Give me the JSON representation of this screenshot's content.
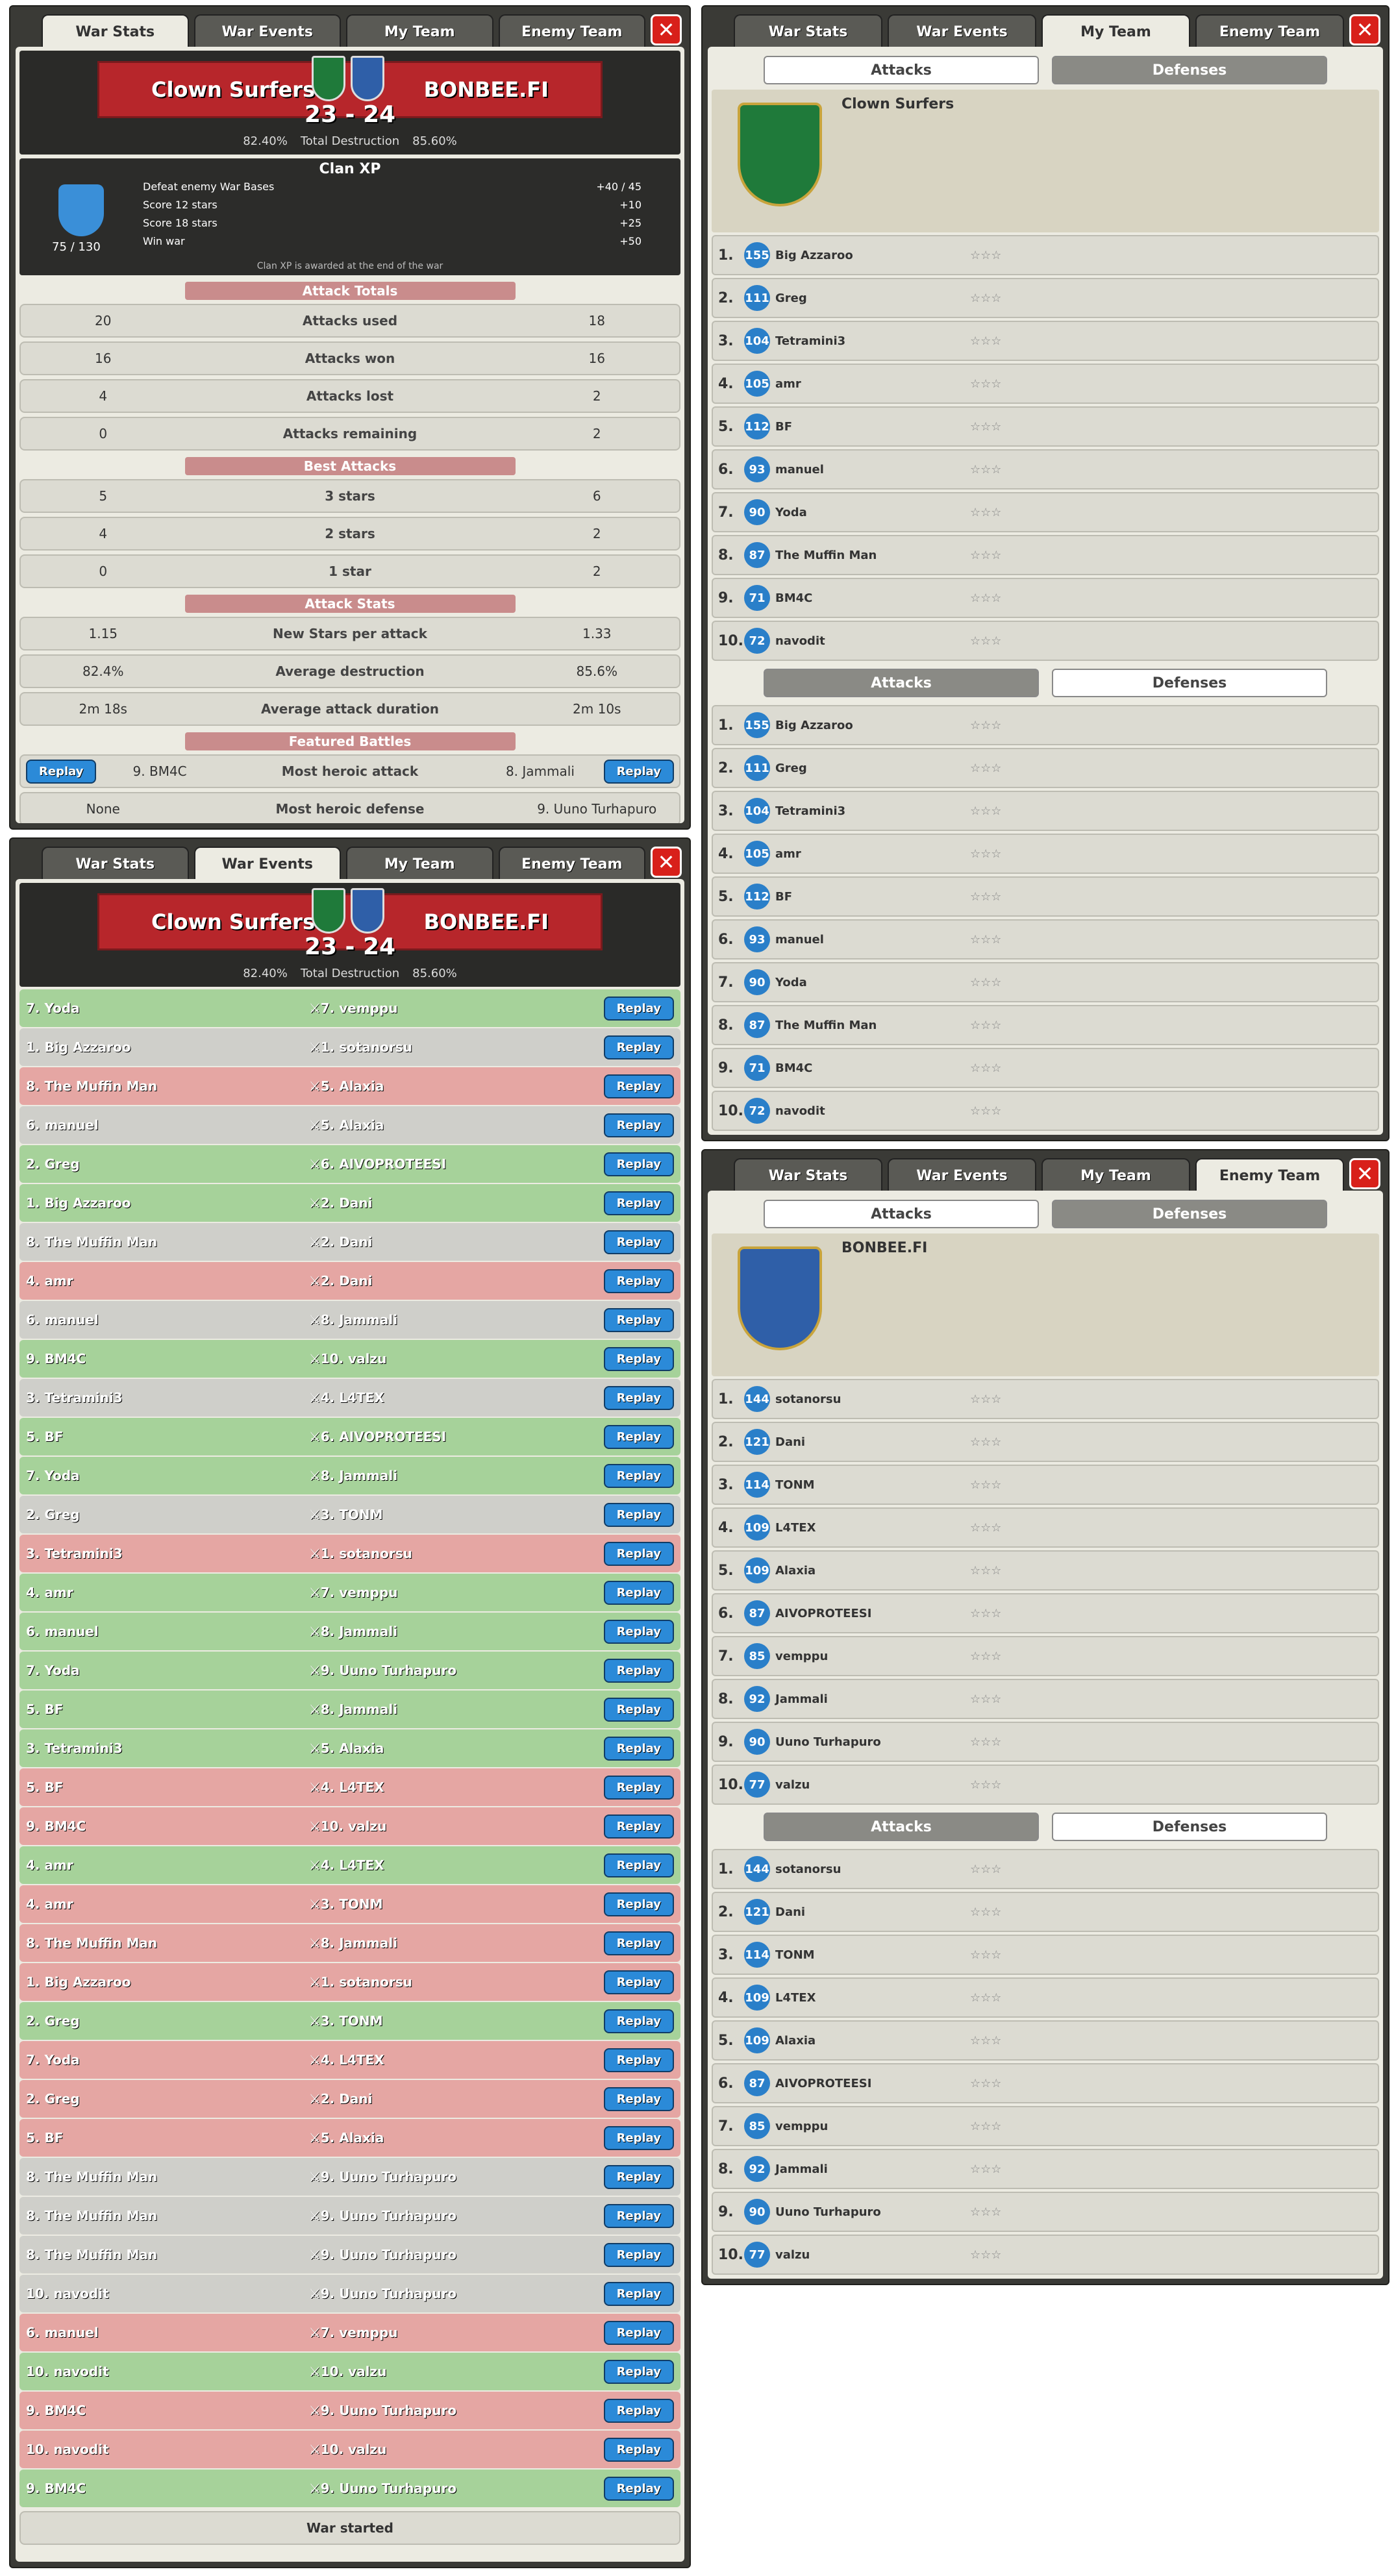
{
  "tabs": [
    "War Stats",
    "War Events",
    "My Team",
    "Enemy Team"
  ],
  "clan": "Clown Surfers",
  "enemy": "BONBEE.FI",
  "score": "23 - 24",
  "destruction": {
    "left": "82.40%",
    "label": "Total Destruction",
    "right": "85.60%"
  },
  "xp": {
    "title": "Clan XP",
    "value": "75 / 130",
    "rows": [
      [
        "Defeat enemy War Bases",
        "+40 / 45"
      ],
      [
        "Score 12 stars",
        "+10"
      ],
      [
        "Score 18 stars",
        "+25"
      ],
      [
        "Win war",
        "+50"
      ]
    ],
    "note": "Clan XP is awarded at the end of the war"
  },
  "totals": {
    "title": "Attack Totals",
    "rows": [
      [
        "20",
        "Attacks used",
        "18"
      ],
      [
        "16",
        "Attacks won",
        "16"
      ],
      [
        "4",
        "Attacks lost",
        "2"
      ],
      [
        "0",
        "Attacks remaining",
        "2"
      ]
    ]
  },
  "best": {
    "title": "Best Attacks",
    "rows": [
      [
        "5",
        "3 stars",
        "6"
      ],
      [
        "4",
        "2 stars",
        "2"
      ],
      [
        "0",
        "1 star",
        "2"
      ]
    ]
  },
  "stats": {
    "title": "Attack Stats",
    "rows": [
      [
        "1.15",
        "New Stars per attack",
        "1.33"
      ],
      [
        "82.4%",
        "Average destruction",
        "85.6%"
      ],
      [
        "2m 18s",
        "Average attack duration",
        "2m 10s"
      ]
    ]
  },
  "featured": {
    "title": "Featured Battles",
    "replay": "Replay",
    "heroic_attack": [
      "9. BM4C",
      "Most heroic attack",
      "8. Jammali"
    ],
    "heroic_defense": [
      "None",
      "Most heroic defense",
      "9. Uuno Turhapuro"
    ]
  },
  "events": [
    [
      "7. Yoda",
      "7. vemppu",
      "w"
    ],
    [
      "1. Big Azzaroo",
      "1. sotanorsu",
      "n"
    ],
    [
      "8. The Muffin Man",
      "5. Alaxia",
      "l"
    ],
    [
      "6. manuel",
      "5. Alaxia",
      "n"
    ],
    [
      "2. Greg",
      "6. AIVOPROTEESI",
      "w"
    ],
    [
      "1. Big Azzaroo",
      "2. Dani",
      "w"
    ],
    [
      "8. The Muffin Man",
      "2. Dani",
      "n"
    ],
    [
      "4. amr",
      "2. Dani",
      "l"
    ],
    [
      "6. manuel",
      "8. Jammali",
      "n"
    ],
    [
      "9. BM4C",
      "10. valzu",
      "w"
    ],
    [
      "3. Tetramini3",
      "4. L4TEX",
      "n"
    ],
    [
      "5. BF",
      "6. AIVOPROTEESI",
      "w"
    ],
    [
      "7. Yoda",
      "8. Jammali",
      "w"
    ],
    [
      "2. Greg",
      "3. TONM",
      "n"
    ],
    [
      "3. Tetramini3",
      "1. sotanorsu",
      "l"
    ],
    [
      "4. amr",
      "7. vemppu",
      "w"
    ],
    [
      "6. manuel",
      "8. Jammali",
      "w"
    ],
    [
      "7. Yoda",
      "9. Uuno Turhapuro",
      "w"
    ],
    [
      "5. BF",
      "8. Jammali",
      "w"
    ],
    [
      "3. Tetramini3",
      "5. Alaxia",
      "w"
    ],
    [
      "5. BF",
      "4. L4TEX",
      "l"
    ],
    [
      "9. BM4C",
      "10. valzu",
      "l"
    ],
    [
      "4. amr",
      "4. L4TEX",
      "w"
    ],
    [
      "4. amr",
      "3. TONM",
      "l"
    ],
    [
      "8. The Muffin Man",
      "8. Jammali",
      "l"
    ],
    [
      "1. Big Azzaroo",
      "1. sotanorsu",
      "l"
    ],
    [
      "2. Greg",
      "3. TONM",
      "w"
    ],
    [
      "7. Yoda",
      "4. L4TEX",
      "l"
    ],
    [
      "2. Greg",
      "2. Dani",
      "l"
    ],
    [
      "5. BF",
      "5. Alaxia",
      "l"
    ],
    [
      "8. The Muffin Man",
      "9. Uuno Turhapuro",
      "n"
    ],
    [
      "8. The Muffin Man",
      "9. Uuno Turhapuro",
      "n"
    ],
    [
      "8. The Muffin Man",
      "9. Uuno Turhapuro",
      "n"
    ],
    [
      "10. navodit",
      "9. Uuno Turhapuro",
      "n"
    ],
    [
      "6. manuel",
      "7. vemppu",
      "l"
    ],
    [
      "10. navodit",
      "10. valzu",
      "w"
    ],
    [
      "9. BM4C",
      "9. Uuno Turhapuro",
      "l"
    ],
    [
      "10. navodit",
      "10. valzu",
      "l"
    ],
    [
      "9. BM4C",
      "9. Uuno Turhapuro",
      "w"
    ]
  ],
  "war_started": "War started",
  "my_team": {
    "attacks": "Attacks",
    "defenses": "Defenses",
    "name": "Clown Surfers",
    "members": [
      [
        "1.",
        "155",
        "Big Azzaroo"
      ],
      [
        "2.",
        "111",
        "Greg"
      ],
      [
        "3.",
        "104",
        "Tetramini3"
      ],
      [
        "4.",
        "105",
        "amr"
      ],
      [
        "5.",
        "112",
        "BF"
      ],
      [
        "6.",
        "93",
        "manuel"
      ],
      [
        "7.",
        "90",
        "Yoda"
      ],
      [
        "8.",
        "87",
        "The Muffin Man"
      ],
      [
        "9.",
        "71",
        "BM4C"
      ],
      [
        "10.",
        "72",
        "navodit"
      ]
    ]
  },
  "enemy_team": {
    "name": "BONBEE.FI",
    "members": [
      [
        "1.",
        "144",
        "sotanorsu"
      ],
      [
        "2.",
        "121",
        "Dani"
      ],
      [
        "3.",
        "114",
        "TONM"
      ],
      [
        "4.",
        "109",
        "L4TEX"
      ],
      [
        "5.",
        "109",
        "Alaxia"
      ],
      [
        "6.",
        "87",
        "AIVOPROTEESI"
      ],
      [
        "7.",
        "85",
        "vemppu"
      ],
      [
        "8.",
        "92",
        "Jammali"
      ],
      [
        "9.",
        "90",
        "Uuno Turhapuro"
      ],
      [
        "10.",
        "77",
        "valzu"
      ]
    ]
  }
}
